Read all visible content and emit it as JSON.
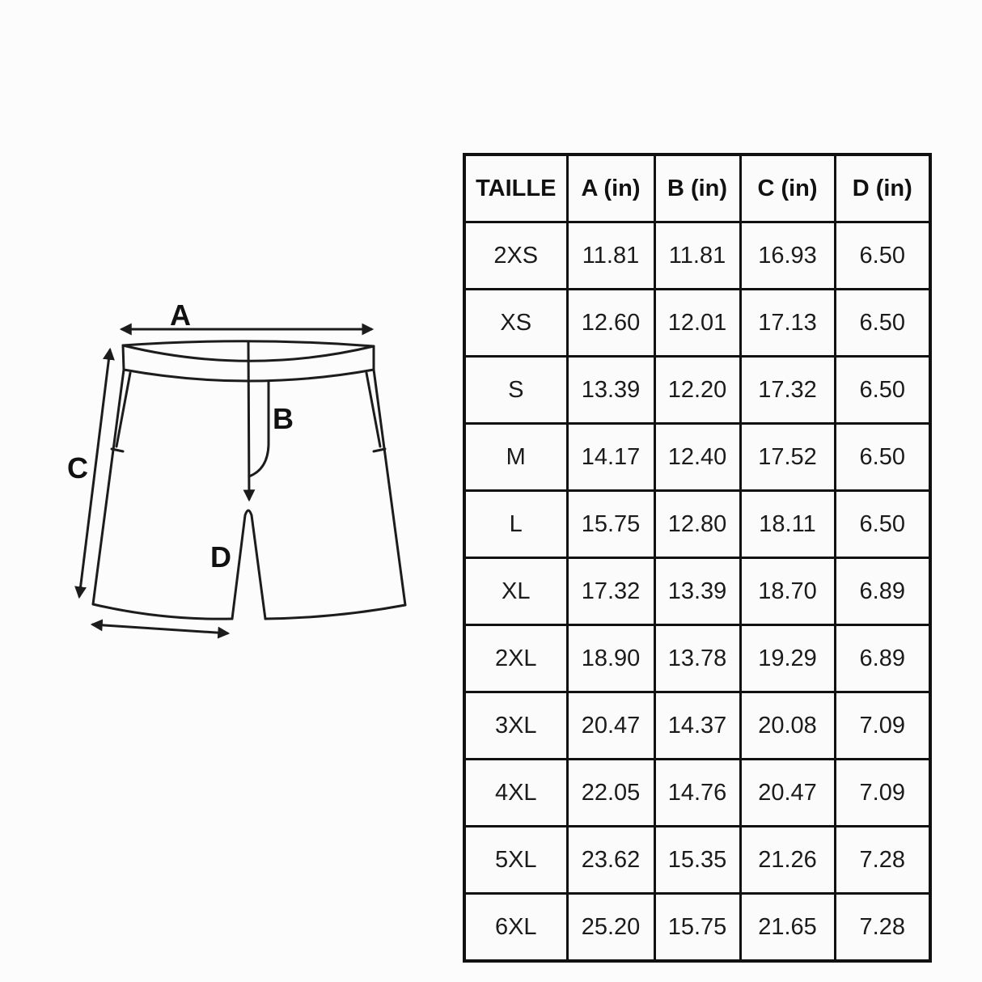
{
  "page": {
    "background_color": "#fcfcfc",
    "line_color": "#1c1c1c",
    "border_color": "#111111"
  },
  "diagram": {
    "subject": "shorts-flat-sketch",
    "labels": {
      "a": "A",
      "b": "B",
      "c": "C",
      "d": "D"
    }
  },
  "chart_data": {
    "type": "table",
    "title": "",
    "columns": [
      "TAILLE",
      "A (in)",
      "B (in)",
      "C (in)",
      "D (in)"
    ],
    "rows": [
      [
        "2XS",
        "11.81",
        "11.81",
        "16.93",
        "6.50"
      ],
      [
        "XS",
        "12.60",
        "12.01",
        "17.13",
        "6.50"
      ],
      [
        "S",
        "13.39",
        "12.20",
        "17.32",
        "6.50"
      ],
      [
        "M",
        "14.17",
        "12.40",
        "17.52",
        "6.50"
      ],
      [
        "L",
        "15.75",
        "12.80",
        "18.11",
        "6.50"
      ],
      [
        "XL",
        "17.32",
        "13.39",
        "18.70",
        "6.89"
      ],
      [
        "2XL",
        "18.90",
        "13.78",
        "19.29",
        "6.89"
      ],
      [
        "3XL",
        "20.47",
        "14.37",
        "20.08",
        "7.09"
      ],
      [
        "4XL",
        "22.05",
        "14.76",
        "20.47",
        "7.09"
      ],
      [
        "5XL",
        "23.62",
        "15.35",
        "21.26",
        "7.28"
      ],
      [
        "6XL",
        "25.20",
        "15.75",
        "21.65",
        "7.28"
      ]
    ]
  }
}
